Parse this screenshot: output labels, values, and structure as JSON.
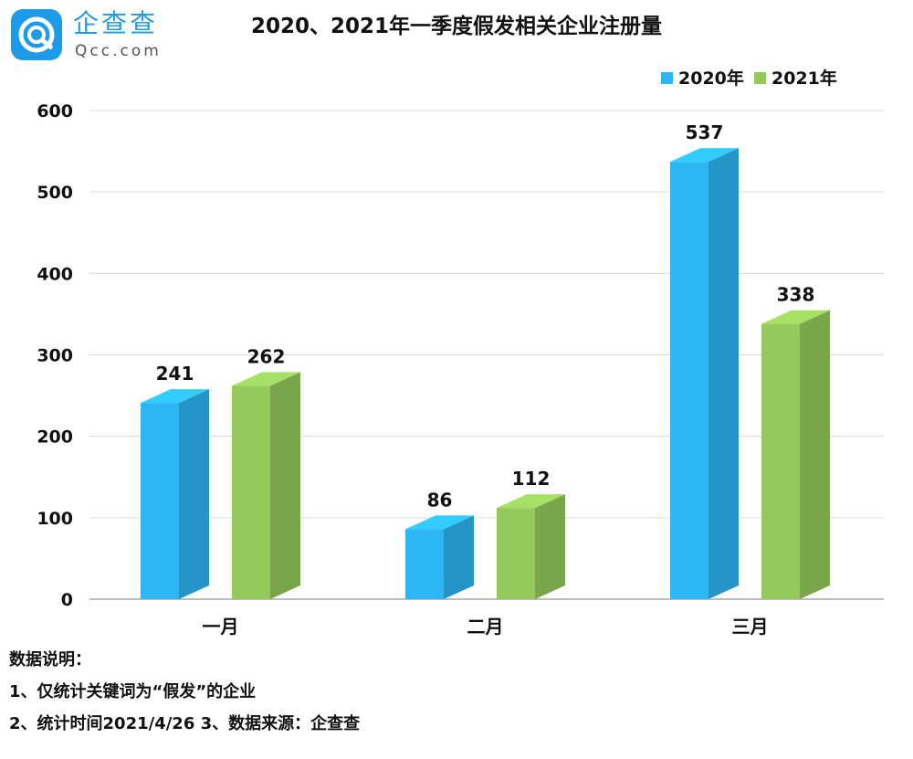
{
  "logo": {
    "name_cn": "企查查",
    "name_en": "Qcc.com"
  },
  "chart_data": {
    "type": "bar",
    "title": "2020、2021年一季度假发相关企业注册量",
    "categories": [
      "一月",
      "二月",
      "三月"
    ],
    "series": [
      {
        "name": "2020年",
        "values": [
          241,
          86,
          537
        ],
        "color": "#2db6f4"
      },
      {
        "name": "2021年",
        "values": [
          262,
          112,
          338
        ],
        "color": "#94c95c"
      }
    ],
    "ylim": [
      0,
      600
    ],
    "yticks": [
      0,
      100,
      200,
      300,
      400,
      500,
      600
    ],
    "xlabel": "",
    "ylabel": "",
    "grid": true,
    "legend": "top-right",
    "style": "3d-column"
  },
  "notes": {
    "heading": "数据说明：",
    "line1": "1、仅统计关键词为“假发”的企业",
    "line2": "2、统计时间2021/4/26   3、数据来源：企查查"
  }
}
